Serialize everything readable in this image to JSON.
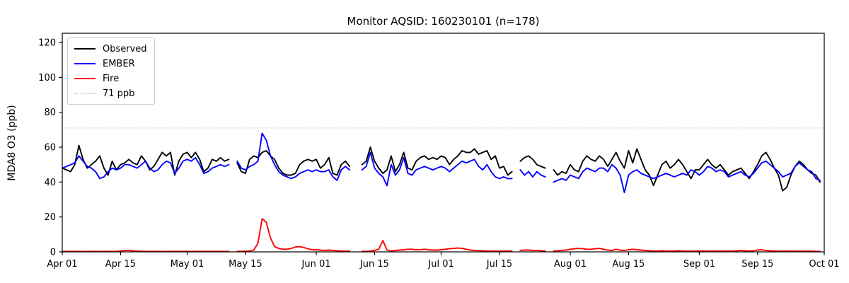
{
  "chart_data": {
    "type": "line",
    "title": "Monitor AQSID: 160230101 (n=178)",
    "ylabel": "MDA8 O3 (ppb)",
    "xlabel": "",
    "ylim": [
      0,
      125.3
    ],
    "yticks": [
      0,
      20,
      40,
      60,
      80,
      100,
      120
    ],
    "n_days": 183,
    "grid": false,
    "legend_position": "upper left",
    "xticks": [
      {
        "day": 0,
        "label": "Apr 01"
      },
      {
        "day": 14,
        "label": "Apr 15"
      },
      {
        "day": 30,
        "label": "May 01"
      },
      {
        "day": 44,
        "label": "May 15"
      },
      {
        "day": 61,
        "label": "Jun 01"
      },
      {
        "day": 75,
        "label": "Jun 15"
      },
      {
        "day": 91,
        "label": "Jul 01"
      },
      {
        "day": 105,
        "label": "Jul 15"
      },
      {
        "day": 122,
        "label": "Aug 01"
      },
      {
        "day": 136,
        "label": "Aug 15"
      },
      {
        "day": 153,
        "label": "Sep 01"
      },
      {
        "day": 167,
        "label": "Sep 15"
      },
      {
        "day": 183,
        "label": "Oct 01"
      }
    ],
    "reference_line": {
      "value": 71,
      "label": "71 ppb",
      "color": "#d3d3d3",
      "style": "dotted"
    },
    "legend": [
      {
        "label": "Observed",
        "color": "#000000",
        "style": "solid"
      },
      {
        "label": "EMBER",
        "color": "#0000ff",
        "style": "solid"
      },
      {
        "label": "Fire",
        "color": "#ff0000",
        "style": "solid"
      },
      {
        "label": "71 ppb",
        "color": "#d3d3d3",
        "style": "dotted"
      }
    ],
    "series": [
      {
        "name": "Observed",
        "color": "#000000",
        "values": [
          48,
          47,
          46,
          50,
          61,
          53,
          48,
          50,
          52,
          55,
          48,
          44,
          52,
          47,
          50,
          51,
          53,
          51,
          50,
          55,
          52,
          47,
          49,
          53,
          57,
          55,
          57,
          44,
          52,
          56,
          57,
          54,
          57,
          53,
          46,
          48,
          53,
          52,
          54,
          52,
          53,
          null,
          51,
          46,
          45,
          53,
          55,
          54,
          57,
          58,
          55,
          53,
          48,
          45,
          44,
          44,
          45,
          50,
          52,
          53,
          52,
          53,
          48,
          50,
          54,
          45,
          44,
          50,
          52,
          49,
          null,
          null,
          50,
          52,
          60,
          52,
          48,
          45,
          47,
          55,
          46,
          50,
          57,
          48,
          47,
          52,
          54,
          55,
          53,
          54,
          53,
          55,
          54,
          50,
          53,
          55,
          58,
          57,
          57,
          59,
          56,
          57,
          58,
          53,
          55,
          48,
          49,
          44,
          46,
          null,
          52,
          54,
          55,
          53,
          50,
          49,
          48,
          null,
          47,
          44,
          46,
          45,
          50,
          47,
          46,
          52,
          55,
          53,
          52,
          55,
          53,
          49,
          53,
          57,
          52,
          48,
          58,
          51,
          59,
          53,
          47,
          44,
          38,
          44,
          50,
          52,
          48,
          50,
          53,
          50,
          46,
          42,
          47,
          47,
          50,
          53,
          50,
          48,
          50,
          47,
          44,
          46,
          47,
          48,
          45,
          42,
          46,
          50,
          55,
          57,
          53,
          48,
          44,
          35,
          37,
          44,
          49,
          52,
          50,
          47,
          45,
          44,
          40
        ]
      },
      {
        "name": "EMBER",
        "color": "#0000ff",
        "values": [
          48,
          49,
          50,
          51,
          55,
          52,
          49,
          48,
          46,
          42,
          43,
          46,
          48,
          47,
          48,
          50,
          50,
          49,
          48,
          50,
          52,
          48,
          46,
          47,
          50,
          52,
          51,
          45,
          48,
          52,
          53,
          52,
          54,
          50,
          45,
          46,
          48,
          49,
          50,
          49,
          50,
          null,
          52,
          48,
          47,
          49,
          50,
          52,
          68,
          64,
          55,
          50,
          46,
          44,
          43,
          42,
          43,
          45,
          46,
          47,
          46,
          47,
          46,
          46,
          47,
          43,
          41,
          47,
          49,
          47,
          null,
          null,
          47,
          49,
          57,
          48,
          45,
          43,
          38,
          50,
          44,
          47,
          54,
          45,
          44,
          47,
          48,
          49,
          48,
          47,
          48,
          49,
          48,
          46,
          48,
          50,
          52,
          51,
          52,
          53,
          49,
          47,
          50,
          46,
          43,
          42,
          43,
          42,
          42,
          null,
          47,
          44,
          46,
          43,
          46,
          44,
          43,
          null,
          40,
          41,
          42,
          41,
          44,
          43,
          42,
          46,
          48,
          47,
          46,
          48,
          48,
          46,
          50,
          48,
          44,
          34,
          44,
          46,
          47,
          45,
          44,
          43,
          42,
          43,
          44,
          45,
          44,
          43,
          44,
          45,
          44,
          47,
          46,
          44,
          46,
          49,
          48,
          46,
          47,
          46,
          43,
          44,
          45,
          46,
          44,
          43,
          45,
          48,
          51,
          52,
          50,
          48,
          46,
          43,
          44,
          45,
          49,
          51,
          49,
          47,
          46,
          42,
          41
        ]
      },
      {
        "name": "Fire",
        "color": "#ff0000",
        "values": [
          0.3,
          0.3,
          0.2,
          0.3,
          0.3,
          0.2,
          0.2,
          0.3,
          0.3,
          0.2,
          0.2,
          0.3,
          0.3,
          0.2,
          0.5,
          0.8,
          0.8,
          0.6,
          0.4,
          0.3,
          0.3,
          0.2,
          0.3,
          0.3,
          0.2,
          0.2,
          0.3,
          0.2,
          0.3,
          0.3,
          0.3,
          0.2,
          0.3,
          0.3,
          0.2,
          0.3,
          0.2,
          0.3,
          0.3,
          0.2,
          0.3,
          null,
          0.3,
          0.3,
          0.4,
          0.5,
          1.0,
          5.0,
          19.0,
          17.0,
          8.0,
          3.0,
          2.0,
          1.5,
          1.5,
          2.0,
          2.8,
          3.0,
          2.5,
          1.8,
          1.2,
          1.2,
          1.0,
          0.8,
          1.0,
          0.8,
          0.6,
          0.5,
          0.5,
          0.4,
          null,
          null,
          0.3,
          0.3,
          0.5,
          0.8,
          1.5,
          6.5,
          1.0,
          0.5,
          0.8,
          1.0,
          1.2,
          1.5,
          1.5,
          1.2,
          1.3,
          1.5,
          1.2,
          1.0,
          1.0,
          1.2,
          1.5,
          1.8,
          2.0,
          2.2,
          2.0,
          1.5,
          1.0,
          0.8,
          0.7,
          0.6,
          0.5,
          0.5,
          0.4,
          0.4,
          0.5,
          0.5,
          0.5,
          null,
          0.8,
          1.0,
          1.0,
          0.8,
          0.8,
          0.6,
          0.5,
          null,
          0.5,
          0.6,
          0.8,
          1.0,
          1.5,
          1.8,
          2.0,
          1.8,
          1.5,
          1.5,
          1.8,
          2.0,
          1.5,
          1.0,
          0.8,
          1.5,
          1.0,
          0.8,
          1.2,
          1.5,
          1.2,
          1.0,
          0.8,
          0.6,
          0.5,
          0.5,
          0.6,
          0.5,
          0.5,
          0.5,
          0.6,
          0.5,
          0.4,
          0.4,
          0.5,
          0.5,
          0.5,
          0.4,
          0.5,
          0.5,
          0.4,
          0.5,
          0.5,
          0.4,
          0.6,
          0.8,
          0.6,
          0.5,
          0.6,
          1.0,
          1.2,
          0.8,
          0.6,
          0.5,
          0.4,
          0.4,
          0.5,
          0.4,
          0.4,
          0.5,
          0.4,
          0.4,
          0.4,
          0.3,
          0.3
        ]
      }
    ]
  }
}
